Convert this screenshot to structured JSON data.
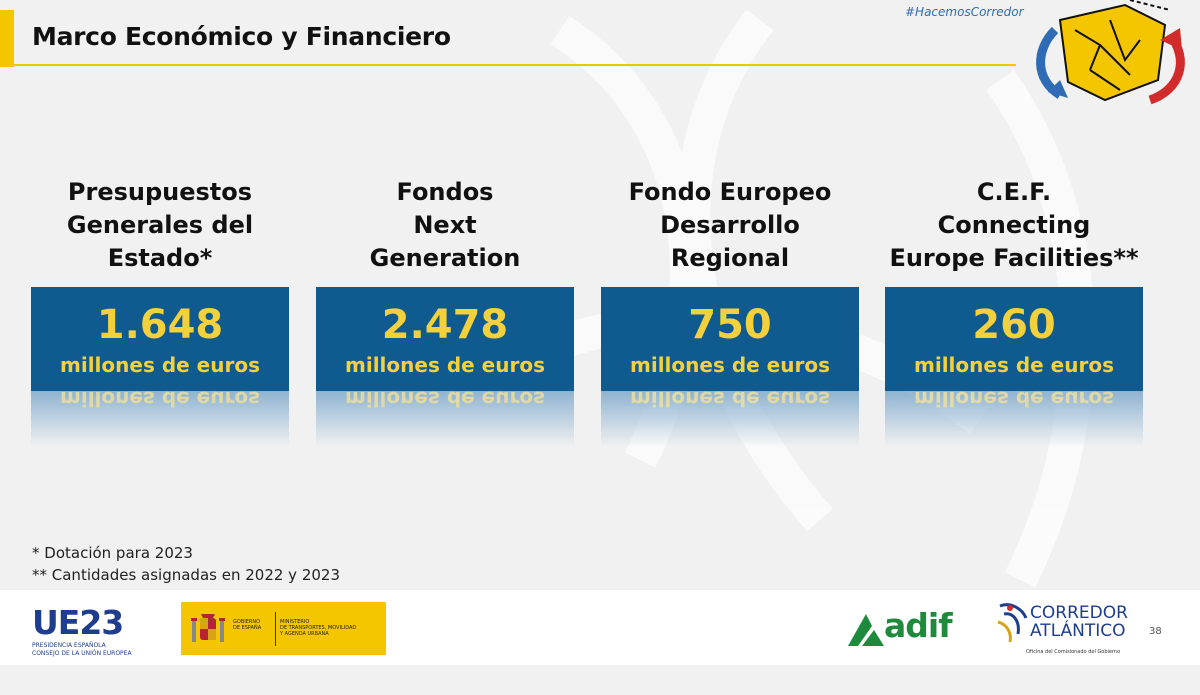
{
  "header": {
    "title": "Marco Económico y Financiero",
    "hashtag": "#HacemosCorredor"
  },
  "columns": [
    {
      "heading": "Presupuestos\nGenerales del\nEstado*",
      "amount": "1.648",
      "unit": "millones de euros"
    },
    {
      "heading": "Fondos\nNext\nGeneration",
      "amount": "2.478",
      "unit": "millones de euros"
    },
    {
      "heading": "Fondo Europeo\nDesarrollo\nRegional",
      "amount": "750",
      "unit": "millones de euros"
    },
    {
      "heading": "C.E.F.\nConnecting\nEurope Facilities**",
      "amount": "260",
      "unit": "millones de euros"
    }
  ],
  "notes": {
    "note1": "* Dotación para 2023",
    "note2": "** Cantidades asignadas en 2022 y 2023"
  },
  "footer": {
    "ue_logo_text": "UE23",
    "ue_subtitle": "PRESIDENCIA ESPAÑOLA\nCONSEJO DE LA UNIÓN EUROPEA",
    "gov_name": "GOBIERNO\nDE ESPAÑA",
    "ministry": "MINISTERIO\nDE TRANSPORTES, MOVILIDAD\nY AGENDA URBANA",
    "adif": "adif",
    "corredor_line1": "CORREDOR",
    "corredor_line2": "ATLÁNTICO",
    "corredor_sub": "Oficina del Comisionado del Gobierno",
    "page_number": "38"
  },
  "colors": {
    "accent_yellow": "#f4c600",
    "box_blue": "#0f5a8e",
    "amount_yellow": "#f2d13d",
    "logo_blue": "#1e3d8f",
    "adif_green": "#1e8a3b"
  },
  "icons": [
    "corredor-map-arrows-icon",
    "spain-coat-of-arms-icon",
    "adif-logo-icon",
    "corredor-atlantico-logo-icon"
  ]
}
